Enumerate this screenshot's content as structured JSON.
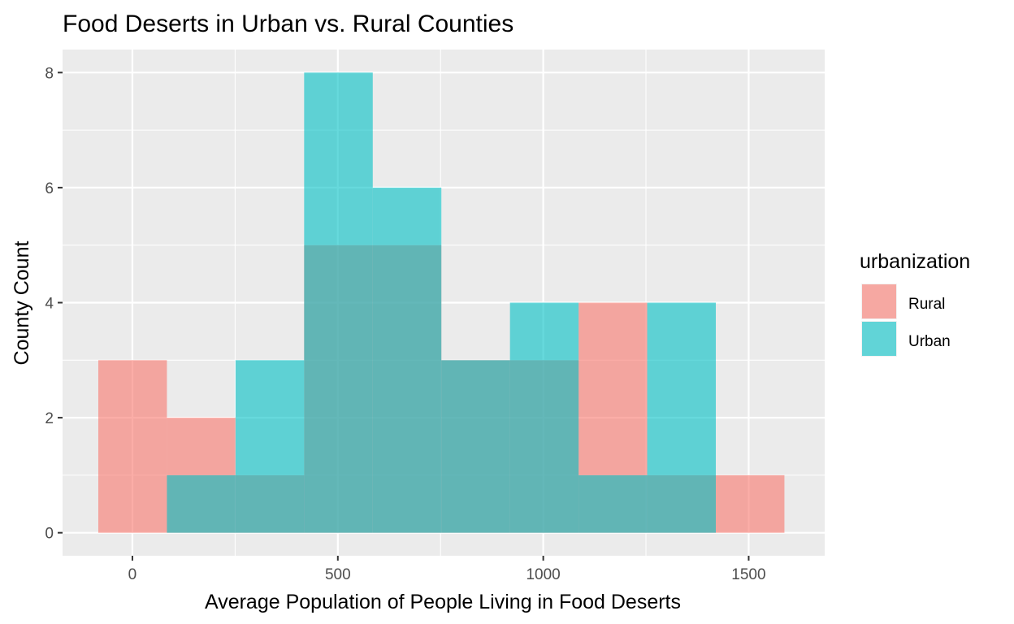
{
  "chart_data": {
    "type": "bar",
    "subtype": "histogram-overlapping",
    "title": "Food Deserts in Urban vs. Rural Counties",
    "xlabel": "Average Population of People Living in Food Deserts",
    "ylabel": "County Count",
    "xlim": [
      -170,
      1685
    ],
    "ylim": [
      -0.4,
      8.4
    ],
    "x_ticks": [
      0,
      500,
      1000,
      1500
    ],
    "x_tick_labels": [
      "0",
      "500",
      "1000",
      "1500"
    ],
    "y_ticks": [
      0,
      2,
      4,
      6,
      8
    ],
    "y_tick_labels": [
      "0",
      "2",
      "4",
      "6",
      "8"
    ],
    "bin_edges": [
      -83,
      84,
      251,
      418,
      585,
      752,
      919,
      1086,
      1253,
      1420,
      1587
    ],
    "grid": true,
    "legend": {
      "title": "urbanization",
      "position": "right"
    },
    "series": [
      {
        "name": "Rural",
        "color": "#F8766D",
        "values": [
          3,
          2,
          1,
          5,
          5,
          3,
          3,
          4,
          1,
          1
        ]
      },
      {
        "name": "Urban",
        "color": "#00BFC4",
        "values": [
          0,
          1,
          3,
          8,
          6,
          3,
          4,
          1,
          4,
          0
        ]
      }
    ],
    "colors": {
      "panel": "#EBEBEB",
      "grid": "#FFFFFF",
      "tick": "#333333"
    }
  }
}
